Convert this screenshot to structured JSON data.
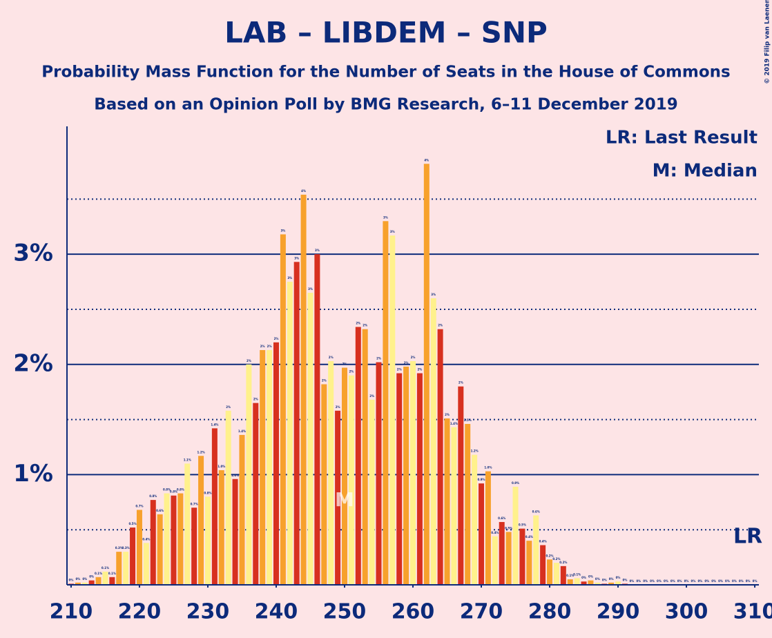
{
  "chart_data": {
    "type": "bar",
    "title": "LAB – LIBDEM – SNP",
    "subtitle": "Probability Mass Function for the Number of Seats in the House of Commons",
    "subtitle2": "Based on an Opinion Poll by BMG Research, 6–11 December 2019",
    "copyright": "© 2019 Filip van Laenen",
    "legend_lines": [
      "LR: Last Result",
      "M: Median"
    ],
    "median": {
      "x": 250,
      "label": "M"
    },
    "last_result": {
      "x": 310,
      "label": "LR"
    },
    "colors": [
      "#d7301f",
      "#f7a12c",
      "#fff18c"
    ],
    "x": [
      210,
      211,
      212,
      213,
      214,
      215,
      216,
      217,
      218,
      219,
      220,
      221,
      222,
      223,
      224,
      225,
      226,
      227,
      228,
      229,
      230,
      231,
      232,
      233,
      234,
      235,
      236,
      237,
      238,
      239,
      240,
      241,
      242,
      243,
      244,
      245,
      246,
      247,
      248,
      249,
      250,
      251,
      252,
      253,
      254,
      255,
      256,
      257,
      258,
      259,
      260,
      261,
      262,
      263,
      264,
      265,
      266,
      267,
      268,
      269,
      270,
      271,
      272,
      273,
      274,
      275,
      276,
      277,
      278,
      279,
      280,
      281,
      282,
      283,
      284,
      285,
      286,
      287,
      288,
      289,
      290,
      291,
      292,
      293,
      294,
      295,
      296,
      297,
      298,
      299,
      300,
      301,
      302,
      303,
      304,
      305,
      306,
      307,
      308,
      309,
      310
    ],
    "values": [
      0.01,
      0.02,
      0.02,
      0.04,
      0.07,
      0.12,
      0.07,
      0.3,
      0.3,
      0.52,
      0.68,
      0.38,
      0.77,
      0.64,
      0.83,
      0.81,
      0.83,
      1.1,
      0.7,
      1.17,
      0.8,
      1.42,
      1.04,
      1.58,
      0.96,
      1.36,
      2.0,
      1.65,
      2.13,
      2.13,
      2.2,
      3.18,
      2.75,
      2.93,
      3.54,
      2.65,
      3.0,
      1.82,
      2.03,
      1.58,
      1.97,
      1.9,
      2.34,
      2.32,
      1.68,
      2.02,
      3.3,
      3.17,
      1.92,
      1.98,
      2.03,
      1.92,
      3.82,
      2.6,
      2.32,
      1.51,
      1.43,
      1.8,
      1.46,
      1.18,
      0.92,
      1.03,
      0.44,
      0.57,
      0.48,
      0.89,
      0.51,
      0.4,
      0.63,
      0.36,
      0.23,
      0.2,
      0.17,
      0.05,
      0.06,
      0.03,
      0.04,
      0.02,
      0.01,
      0.02,
      0.03,
      0.01,
      0,
      0,
      0,
      0,
      0,
      0,
      0,
      0,
      0,
      0,
      0,
      0,
      0,
      0,
      0,
      0,
      0,
      0,
      0
    ],
    "value_labels": [
      "0%",
      "0%",
      "0%",
      "0%",
      "0.1%",
      "0.1%",
      "0.1%",
      "0.3%",
      "0.3%",
      "0.5%",
      "0.7%",
      "0.4%",
      "0.8%",
      "0.6%",
      "0.8%",
      "0.8%",
      "0.8%",
      "1.1%",
      "0.7%",
      "1.2%",
      "0.8%",
      "1.4%",
      "1.0%",
      "2%",
      "1.0%",
      "1.4%",
      "2%",
      "2%",
      "2%",
      "2%",
      "2%",
      "3%",
      "3%",
      "3%",
      "4%",
      "3%",
      "3%",
      "2%",
      "2%",
      "2%",
      "2%",
      "2%",
      "2%",
      "2%",
      "2%",
      "2%",
      "3%",
      "3%",
      "2%",
      "2%",
      "2%",
      "2%",
      "4%",
      "3%",
      "2%",
      "2%",
      "1.4%",
      "2%",
      "1.5%",
      "1.2%",
      "0.9%",
      "1.0%",
      "0.4%",
      "0.6%",
      "0.5%",
      "0.9%",
      "0.5%",
      "0.4%",
      "0.6%",
      "0.4%",
      "0.2%",
      "0.2%",
      "0.2%",
      "0.1%",
      "0.1%",
      "0%",
      "0%",
      "0%",
      "0%",
      "0%",
      "0%",
      "0%",
      "0%",
      "0%",
      "0%",
      "0%",
      "0%",
      "0%",
      "0%",
      "0%",
      "0%",
      "0%",
      "0%",
      "0%",
      "0%",
      "0%",
      "0%",
      "0%",
      "0%",
      "0%",
      "0%"
    ],
    "xlim": [
      209.4,
      310.6
    ],
    "ylim": [
      0,
      4.16
    ],
    "xticks": [
      210,
      220,
      230,
      240,
      250,
      260,
      270,
      280,
      290,
      300,
      310
    ],
    "yticks": [
      {
        "value": 1,
        "label": "1%"
      },
      {
        "value": 2,
        "label": "2%"
      },
      {
        "value": 3,
        "label": "3%"
      }
    ],
    "minor_yticks": [
      0.5,
      1.5,
      2.5,
      3.5
    ],
    "grid": true
  }
}
